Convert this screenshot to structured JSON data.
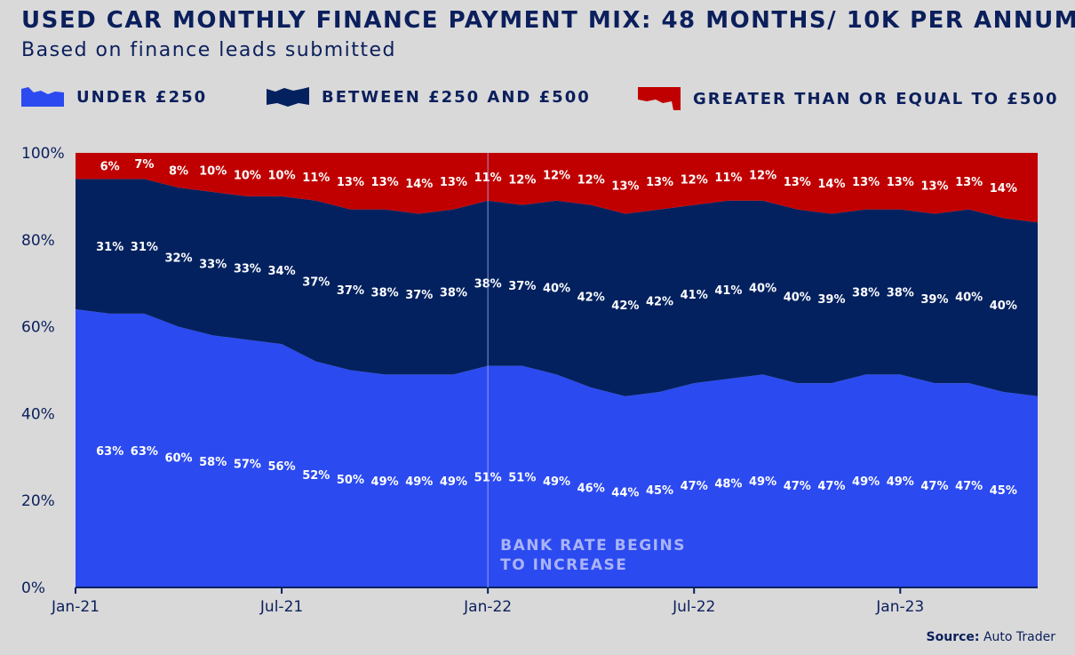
{
  "title": "USED CAR MONTHLY FINANCE PAYMENT MIX: 48 MONTHS/ 10K PER ANNUM",
  "subtitle": "Based on finance leads submitted",
  "source_label": "Source:",
  "source_value": "Auto Trader",
  "colors": {
    "background": "#d9d9d9",
    "under": "#2b4af0",
    "between": "#03215f",
    "greater": "#c00000",
    "text": "#0b1f5c",
    "annotation": "#aab4f6"
  },
  "chart_data": {
    "type": "area",
    "stacked": true,
    "x": [
      "Jan-21",
      "Feb-21",
      "Mar-21",
      "Apr-21",
      "May-21",
      "Jun-21",
      "Jul-21",
      "Aug-21",
      "Sep-21",
      "Oct-21",
      "Nov-21",
      "Dec-21",
      "Jan-22",
      "Feb-22",
      "Mar-22",
      "Apr-22",
      "May-22",
      "Jun-22",
      "Jul-22",
      "Aug-22",
      "Sep-22",
      "Oct-22",
      "Nov-22",
      "Dec-22",
      "Jan-23",
      "Feb-23",
      "Mar-23",
      "Apr-23",
      "May-23"
    ],
    "x_tick_labels": [
      "Jan-21",
      "Jul-21",
      "Jan-22",
      "Jul-22",
      "Jan-23"
    ],
    "y_tick_labels": [
      "0%",
      "20%",
      "40%",
      "60%",
      "80%",
      "100%"
    ],
    "ylim": [
      0,
      100
    ],
    "legend_placement": "top",
    "series": [
      {
        "name": "UNDER £250",
        "color": "#2b4af0",
        "values": [
          64,
          63,
          63,
          60,
          58,
          57,
          56,
          52,
          50,
          49,
          49,
          49,
          51,
          51,
          49,
          46,
          44,
          45,
          47,
          48,
          49,
          47,
          47,
          49,
          49,
          47,
          47,
          45,
          44
        ],
        "labels": [
          null,
          "63%",
          "63%",
          "60%",
          "58%",
          "57%",
          "56%",
          "52%",
          "50%",
          "49%",
          "49%",
          "49%",
          "51%",
          "51%",
          "49%",
          "46%",
          "44%",
          "45%",
          "47%",
          "48%",
          "49%",
          "47%",
          "47%",
          "49%",
          "49%",
          "47%",
          "47%",
          "45%",
          null
        ]
      },
      {
        "name": "BETWEEN £250 AND £500",
        "color": "#03215f",
        "values": [
          30,
          31,
          31,
          32,
          33,
          33,
          34,
          37,
          37,
          38,
          37,
          38,
          38,
          37,
          40,
          42,
          42,
          42,
          41,
          41,
          40,
          40,
          39,
          38,
          38,
          39,
          40,
          40,
          40
        ],
        "labels": [
          null,
          "31%",
          "31%",
          "32%",
          "33%",
          "33%",
          "34%",
          "37%",
          "37%",
          "38%",
          "37%",
          "38%",
          "38%",
          "37%",
          "40%",
          "42%",
          "42%",
          "42%",
          "41%",
          "41%",
          "40%",
          "40%",
          "39%",
          "38%",
          "38%",
          "39%",
          "40%",
          "40%",
          null
        ]
      },
      {
        "name": "GREATER THAN OR EQUAL TO £500",
        "color": "#c00000",
        "values": [
          6,
          6,
          7,
          8,
          10,
          10,
          10,
          11,
          13,
          13,
          14,
          13,
          11,
          12,
          12,
          12,
          13,
          13,
          12,
          11,
          12,
          13,
          14,
          13,
          13,
          13,
          13,
          14,
          16
        ],
        "labels": [
          null,
          "6%",
          "7%",
          "8%",
          "10%",
          "10%",
          "10%",
          "11%",
          "13%",
          "13%",
          "14%",
          "13%",
          "11%",
          "12%",
          "12%",
          "12%",
          "13%",
          "13%",
          "12%",
          "11%",
          "12%",
          "13%",
          "14%",
          "13%",
          "13%",
          "13%",
          "13%",
          "14%",
          null
        ]
      }
    ],
    "annotation": {
      "x": "Jan-22",
      "lines": [
        "BANK RATE BEGINS",
        "TO INCREASE"
      ]
    }
  }
}
